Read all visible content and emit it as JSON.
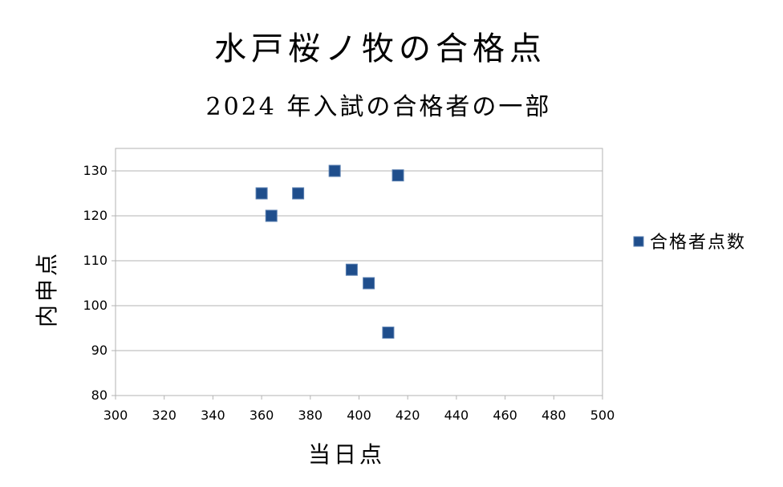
{
  "chart_data": {
    "type": "scatter",
    "title": "水戸桜ノ牧の合格点",
    "subtitle": "2024 年入試の合格者の一部",
    "xlabel": "当日点",
    "ylabel": "内申点",
    "xlim": [
      300,
      500
    ],
    "ylim": [
      80,
      135
    ],
    "xticks": [
      300,
      320,
      340,
      360,
      380,
      400,
      420,
      440,
      460,
      480,
      500
    ],
    "yticks": [
      80,
      90,
      100,
      110,
      120,
      130
    ],
    "grid": true,
    "legend_position": "right",
    "series": [
      {
        "name": "合格者点数",
        "color": "#1f4e8c",
        "marker": "square",
        "points": [
          {
            "x": 360,
            "y": 125
          },
          {
            "x": 364,
            "y": 120
          },
          {
            "x": 375,
            "y": 125
          },
          {
            "x": 390,
            "y": 130
          },
          {
            "x": 397,
            "y": 108
          },
          {
            "x": 404,
            "y": 105
          },
          {
            "x": 412,
            "y": 94
          },
          {
            "x": 416,
            "y": 129
          }
        ]
      }
    ]
  }
}
